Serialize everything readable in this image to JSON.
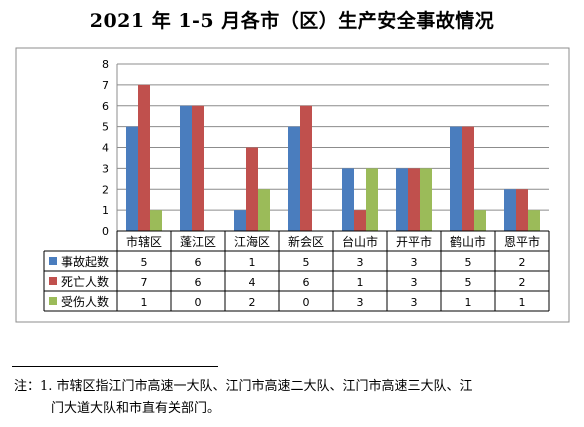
{
  "title": "2021 年 1-5 月各市（区）生产安全事故情况",
  "chart_data": {
    "type": "bar",
    "categories": [
      "市辖区",
      "蓬江区",
      "江海区",
      "新会区",
      "台山市",
      "开平市",
      "鹤山市",
      "恩平市"
    ],
    "series": [
      {
        "name": "事故起数",
        "color": "#4a7dbe",
        "values": [
          5,
          6,
          1,
          5,
          3,
          3,
          5,
          2
        ]
      },
      {
        "name": "死亡人数",
        "color": "#c0504d",
        "values": [
          7,
          6,
          4,
          6,
          1,
          3,
          5,
          2
        ]
      },
      {
        "name": "受伤人数",
        "color": "#9bbb59",
        "values": [
          1,
          0,
          2,
          0,
          3,
          3,
          1,
          1
        ]
      }
    ],
    "ylim": [
      0,
      8
    ],
    "yticks": [
      0,
      1,
      2,
      3,
      4,
      5,
      6,
      7,
      8
    ],
    "grid": true,
    "data_table": true
  },
  "footnote": {
    "line1": "注：1. 市辖区指江门市高速一大队、江门市高速二大队、江门市高速三大队、江",
    "line2": "门大道大队和市直有关部门。"
  }
}
